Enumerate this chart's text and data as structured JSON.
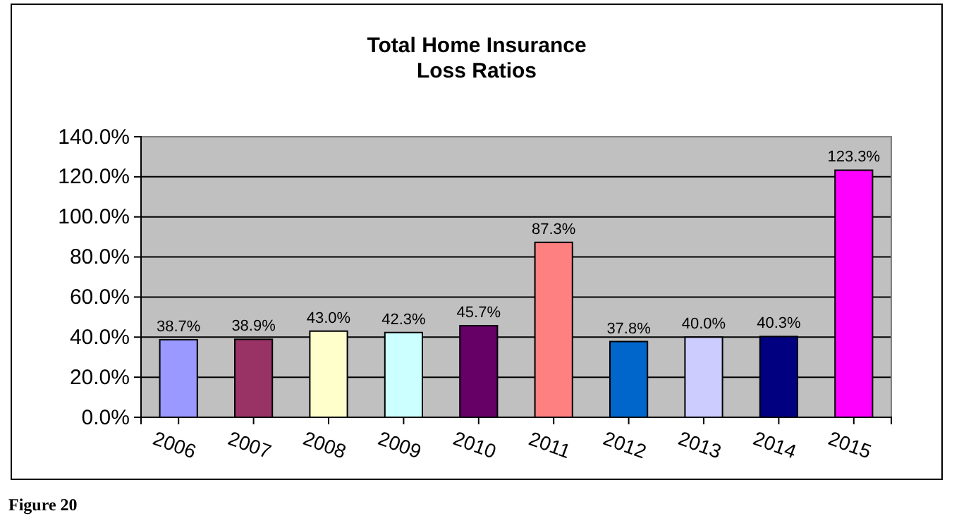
{
  "chart_data": {
    "type": "bar",
    "title": "Total Home Insurance\nLoss Ratios",
    "categories": [
      "2006",
      "2007",
      "2008",
      "2009",
      "2010",
      "2011",
      "2012",
      "2013",
      "2014",
      "2015"
    ],
    "values": [
      38.7,
      38.9,
      43.0,
      42.3,
      45.7,
      87.3,
      37.8,
      40.0,
      40.3,
      123.3
    ],
    "colors": [
      "#9999ff",
      "#993366",
      "#ffffcc",
      "#ccffff",
      "#660066",
      "#ff8080",
      "#0066cc",
      "#ccccff",
      "#000080",
      "#ff00ff"
    ],
    "value_labels": [
      "38.7%",
      "38.9%",
      "43.0%",
      "42.3%",
      "45.7%",
      "87.3%",
      "37.8%",
      "40.0%",
      "40.3%",
      "123.3%"
    ],
    "ylim": [
      0,
      140
    ],
    "yticks": [
      {
        "value": 0,
        "label": "0.0%"
      },
      {
        "value": 20,
        "label": "20.0%"
      },
      {
        "value": 40,
        "label": "40.0%"
      },
      {
        "value": 60,
        "label": "60.0%"
      },
      {
        "value": 80,
        "label": "80.0%"
      },
      {
        "value": 100,
        "label": "100.0%"
      },
      {
        "value": 120,
        "label": "120.0%"
      },
      {
        "value": 140,
        "label": "140.0%"
      }
    ],
    "grid": "y",
    "annotations": [
      "Figure 20"
    ]
  }
}
